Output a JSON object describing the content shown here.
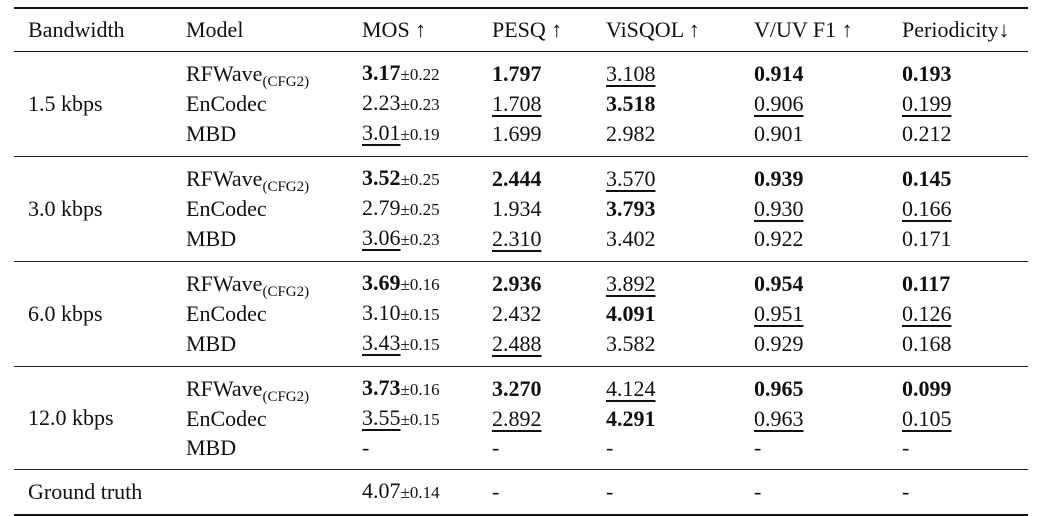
{
  "header": [
    "Bandwidth",
    "Model",
    "MOS ↑",
    "PESQ ↑",
    "ViSQOL ↑",
    "V/UV F1 ↑",
    "Periodicity↓"
  ],
  "groups": [
    {
      "bandwidth": "1.5 kbps",
      "rows": [
        {
          "model": "RFWave",
          "model_sub": "(CFG2)",
          "cells": [
            {
              "v": "3.17",
              "pm": "±0.22",
              "b": true
            },
            {
              "v": "1.797",
              "b": true
            },
            {
              "v": "3.108",
              "u": true
            },
            {
              "v": "0.914",
              "b": true
            },
            {
              "v": "0.193",
              "b": true
            }
          ]
        },
        {
          "model": "EnCodec",
          "cells": [
            {
              "v": "2.23",
              "pm": "±0.23"
            },
            {
              "v": "1.708",
              "u": true
            },
            {
              "v": "3.518",
              "b": true
            },
            {
              "v": "0.906",
              "u": true
            },
            {
              "v": "0.199",
              "u": true
            }
          ]
        },
        {
          "model": "MBD",
          "cells": [
            {
              "v": "3.01",
              "pm": "±0.19",
              "u": true
            },
            {
              "v": "1.699"
            },
            {
              "v": "2.982"
            },
            {
              "v": "0.901"
            },
            {
              "v": "0.212"
            }
          ]
        }
      ]
    },
    {
      "bandwidth": "3.0 kbps",
      "rows": [
        {
          "model": "RFWave",
          "model_sub": "(CFG2)",
          "cells": [
            {
              "v": "3.52",
              "pm": "±0.25",
              "b": true
            },
            {
              "v": "2.444",
              "b": true
            },
            {
              "v": "3.570",
              "u": true
            },
            {
              "v": "0.939",
              "b": true
            },
            {
              "v": "0.145",
              "b": true
            }
          ]
        },
        {
          "model": "EnCodec",
          "cells": [
            {
              "v": "2.79",
              "pm": "±0.25"
            },
            {
              "v": "1.934"
            },
            {
              "v": "3.793",
              "b": true
            },
            {
              "v": "0.930",
              "u": true
            },
            {
              "v": "0.166",
              "u": true
            }
          ]
        },
        {
          "model": "MBD",
          "cells": [
            {
              "v": "3.06",
              "pm": "±0.23",
              "u": true
            },
            {
              "v": "2.310",
              "u": true
            },
            {
              "v": "3.402"
            },
            {
              "v": "0.922"
            },
            {
              "v": "0.171"
            }
          ]
        }
      ]
    },
    {
      "bandwidth": "6.0 kbps",
      "rows": [
        {
          "model": "RFWave",
          "model_sub": "(CFG2)",
          "cells": [
            {
              "v": "3.69",
              "pm": "±0.16",
              "b": true
            },
            {
              "v": "2.936",
              "b": true
            },
            {
              "v": "3.892",
              "u": true
            },
            {
              "v": "0.954",
              "b": true
            },
            {
              "v": "0.117",
              "b": true
            }
          ]
        },
        {
          "model": "EnCodec",
          "cells": [
            {
              "v": "3.10",
              "pm": "±0.15"
            },
            {
              "v": "2.432"
            },
            {
              "v": "4.091",
              "b": true
            },
            {
              "v": "0.951",
              "u": true
            },
            {
              "v": "0.126",
              "u": true
            }
          ]
        },
        {
          "model": "MBD",
          "cells": [
            {
              "v": "3.43",
              "pm": "±0.15",
              "u": true
            },
            {
              "v": "2.488",
              "u": true
            },
            {
              "v": "3.582"
            },
            {
              "v": "0.929"
            },
            {
              "v": "0.168"
            }
          ]
        }
      ]
    },
    {
      "bandwidth": "12.0 kbps",
      "rows": [
        {
          "model": "RFWave",
          "model_sub": "(CFG2)",
          "cells": [
            {
              "v": "3.73",
              "pm": "±0.16",
              "b": true
            },
            {
              "v": "3.270",
              "b": true
            },
            {
              "v": "4.124",
              "u": true
            },
            {
              "v": "0.965",
              "b": true
            },
            {
              "v": "0.099",
              "b": true
            }
          ]
        },
        {
          "model": "EnCodec",
          "cells": [
            {
              "v": "3.55",
              "pm": "±0.15",
              "u": true
            },
            {
              "v": "2.892",
              "u": true
            },
            {
              "v": "4.291",
              "b": true
            },
            {
              "v": "0.963",
              "u": true
            },
            {
              "v": "0.105",
              "u": true
            }
          ]
        },
        {
          "model": "MBD",
          "cells": [
            {
              "v": "-"
            },
            {
              "v": "-"
            },
            {
              "v": "-"
            },
            {
              "v": "-"
            },
            {
              "v": "-"
            }
          ]
        }
      ]
    }
  ],
  "ground_truth": {
    "label": "Ground truth",
    "cells": [
      {
        "v": "4.07",
        "pm": "±0.14"
      },
      {
        "v": "-"
      },
      {
        "v": "-"
      },
      {
        "v": "-"
      },
      {
        "v": "-"
      }
    ]
  }
}
